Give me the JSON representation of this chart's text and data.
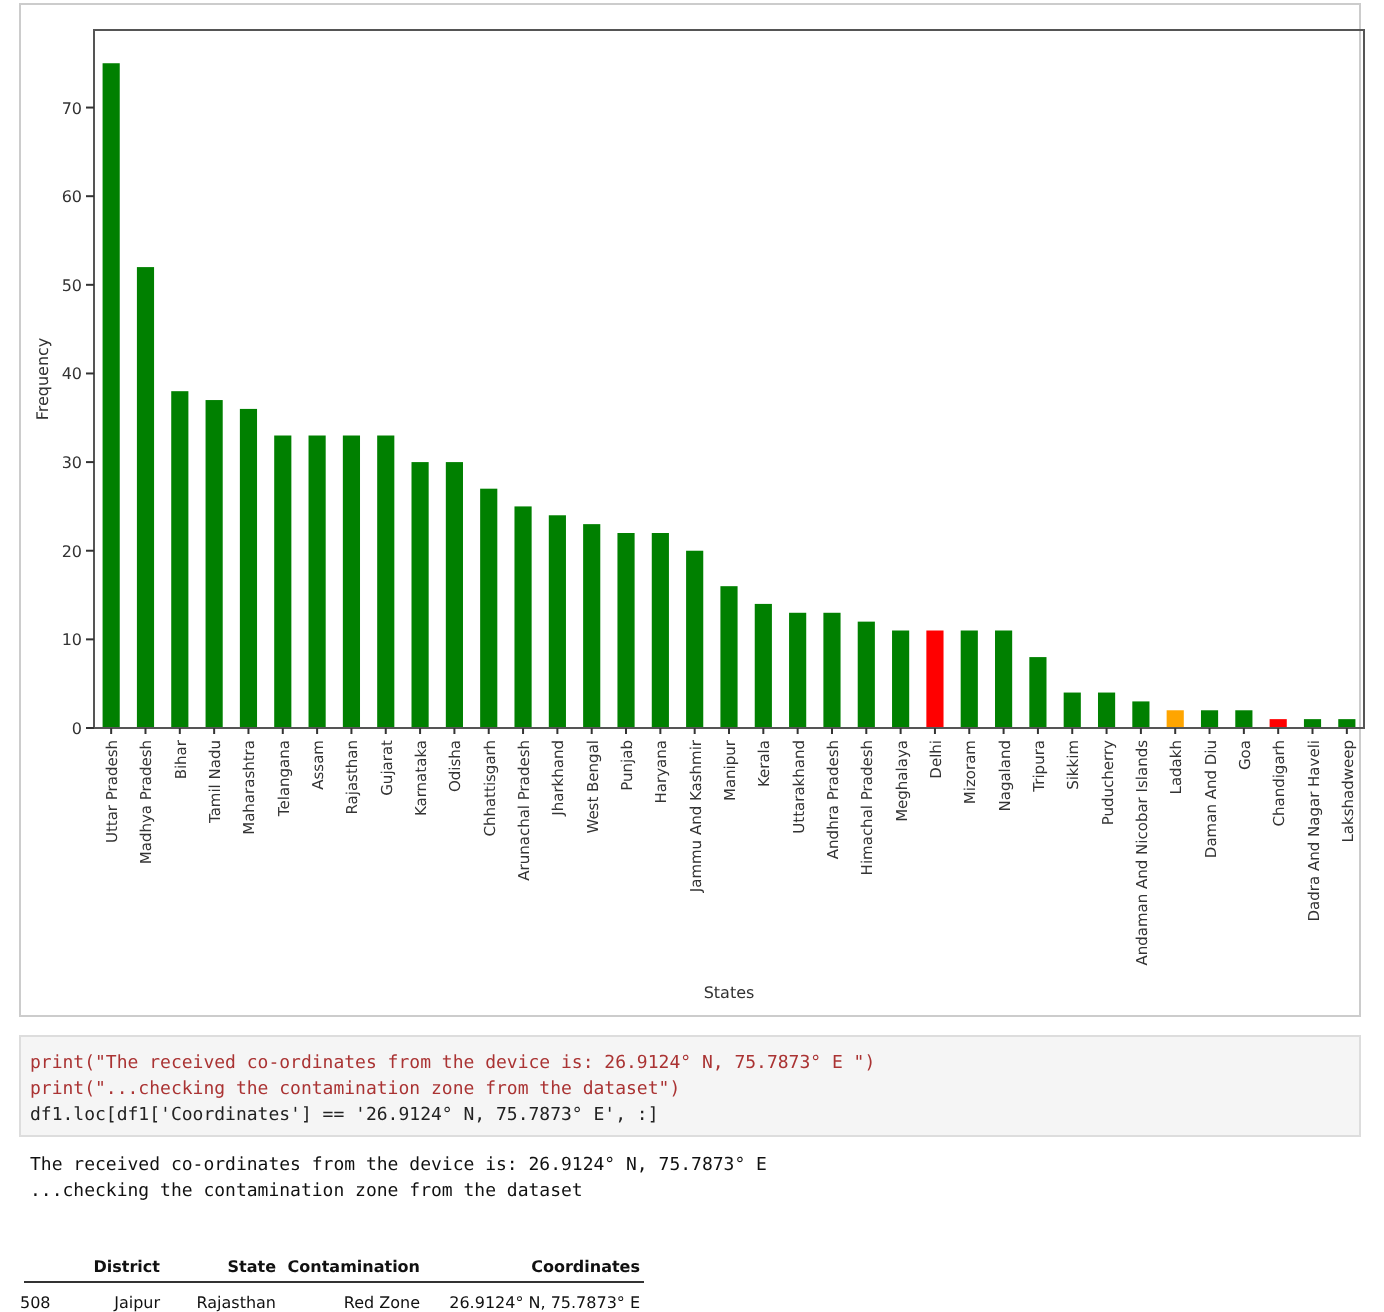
{
  "chart_data": {
    "type": "bar",
    "xlabel": "States",
    "ylabel": "Frequency",
    "categories": [
      "Uttar Pradesh",
      "Madhya Pradesh",
      "Bihar",
      "Tamil Nadu",
      "Maharashtra",
      "Telangana",
      "Assam",
      "Rajasthan",
      "Gujarat",
      "Karnataka",
      "Odisha",
      "Chhattisgarh",
      "Arunachal Pradesh",
      "Jharkhand",
      "West Bengal",
      "Punjab",
      "Haryana",
      "Jammu And Kashmir",
      "Manipur",
      "Kerala",
      "Uttarakhand",
      "Andhra Pradesh",
      "Himachal Pradesh",
      "Meghalaya",
      "Delhi",
      "Mizoram",
      "Nagaland",
      "Tripura",
      "Sikkim",
      "Puducherry",
      "Andaman And Nicobar Islands",
      "Ladakh",
      "Daman And Diu",
      "Goa",
      "Chandigarh",
      "Dadra And Nagar Haveli",
      "Lakshadweep"
    ],
    "values": [
      75,
      52,
      38,
      37,
      36,
      33,
      33,
      33,
      33,
      30,
      30,
      27,
      25,
      24,
      23,
      22,
      22,
      20,
      16,
      14,
      13,
      13,
      12,
      11,
      11,
      11,
      11,
      8,
      4,
      4,
      3,
      2,
      2,
      2,
      1,
      1,
      1
    ],
    "colors": [
      "#008000",
      "#008000",
      "#008000",
      "#008000",
      "#008000",
      "#008000",
      "#008000",
      "#008000",
      "#008000",
      "#008000",
      "#008000",
      "#008000",
      "#008000",
      "#008000",
      "#008000",
      "#008000",
      "#008000",
      "#008000",
      "#008000",
      "#008000",
      "#008000",
      "#008000",
      "#008000",
      "#008000",
      "#ff0000",
      "#008000",
      "#008000",
      "#008000",
      "#008000",
      "#008000",
      "#008000",
      "#ffa500",
      "#008000",
      "#008000",
      "#ff0000",
      "#008000",
      "#008000"
    ],
    "ylim": [
      0,
      78.75
    ],
    "yticks": [
      0,
      10,
      20,
      30,
      40,
      50,
      60,
      70
    ],
    "annotations": [
      "print(\"The received co-ordinates from the device is: 26.9124° N, 75.7873° E \")",
      "print(\"...checking the contamination zone from the dataset\")",
      "df1.loc[df1['Coordinates'] == '26.9124° N, 75.7873° E', :]",
      "The received co-ordinates from the device is: 26.9124° N, 75.7873° E",
      "...checking the contamination zone from the dataset",
      "\tDistrict\tState\tContamination\tCoordinates",
      "508\tJaipur\tRajasthan\tRed Zone\t26.9124° N, 75.7873° E"
    ]
  }
}
